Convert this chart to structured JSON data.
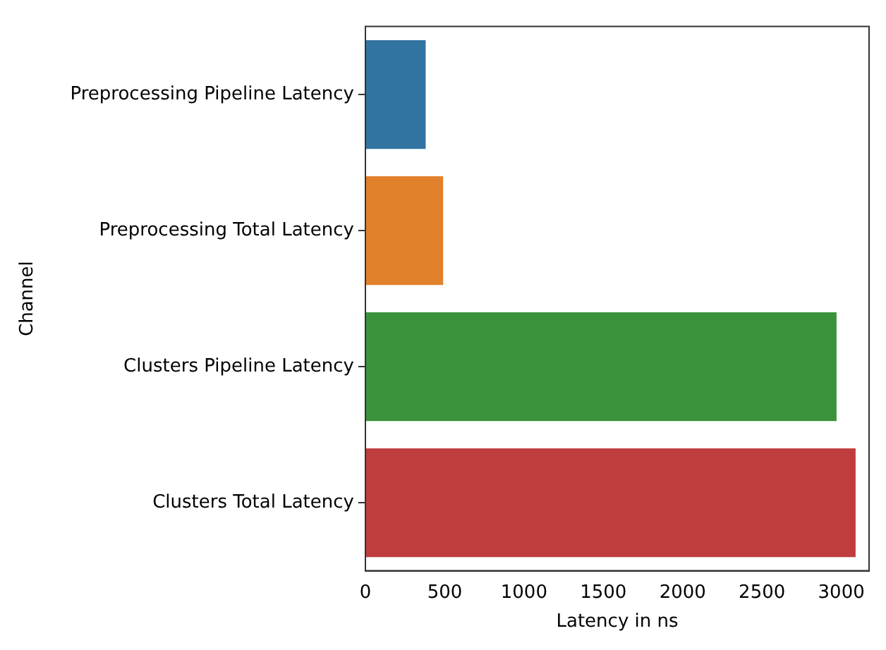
{
  "chart_data": {
    "type": "bar",
    "orientation": "horizontal",
    "xlabel": "Latency in ns",
    "ylabel": "Channel",
    "categories": [
      "Preprocessing Pipeline Latency",
      "Preprocessing Total Latency",
      "Clusters Pipeline Latency",
      "Clusters Total Latency"
    ],
    "values": [
      380,
      490,
      2970,
      3090
    ],
    "colors": [
      "#3274a1",
      "#e1812c",
      "#3a923a",
      "#c03d3e"
    ],
    "xlim": [
      0,
      3175
    ],
    "xticks": [
      0,
      500,
      1000,
      1500,
      2000,
      2500,
      3000
    ],
    "grid": false
  }
}
